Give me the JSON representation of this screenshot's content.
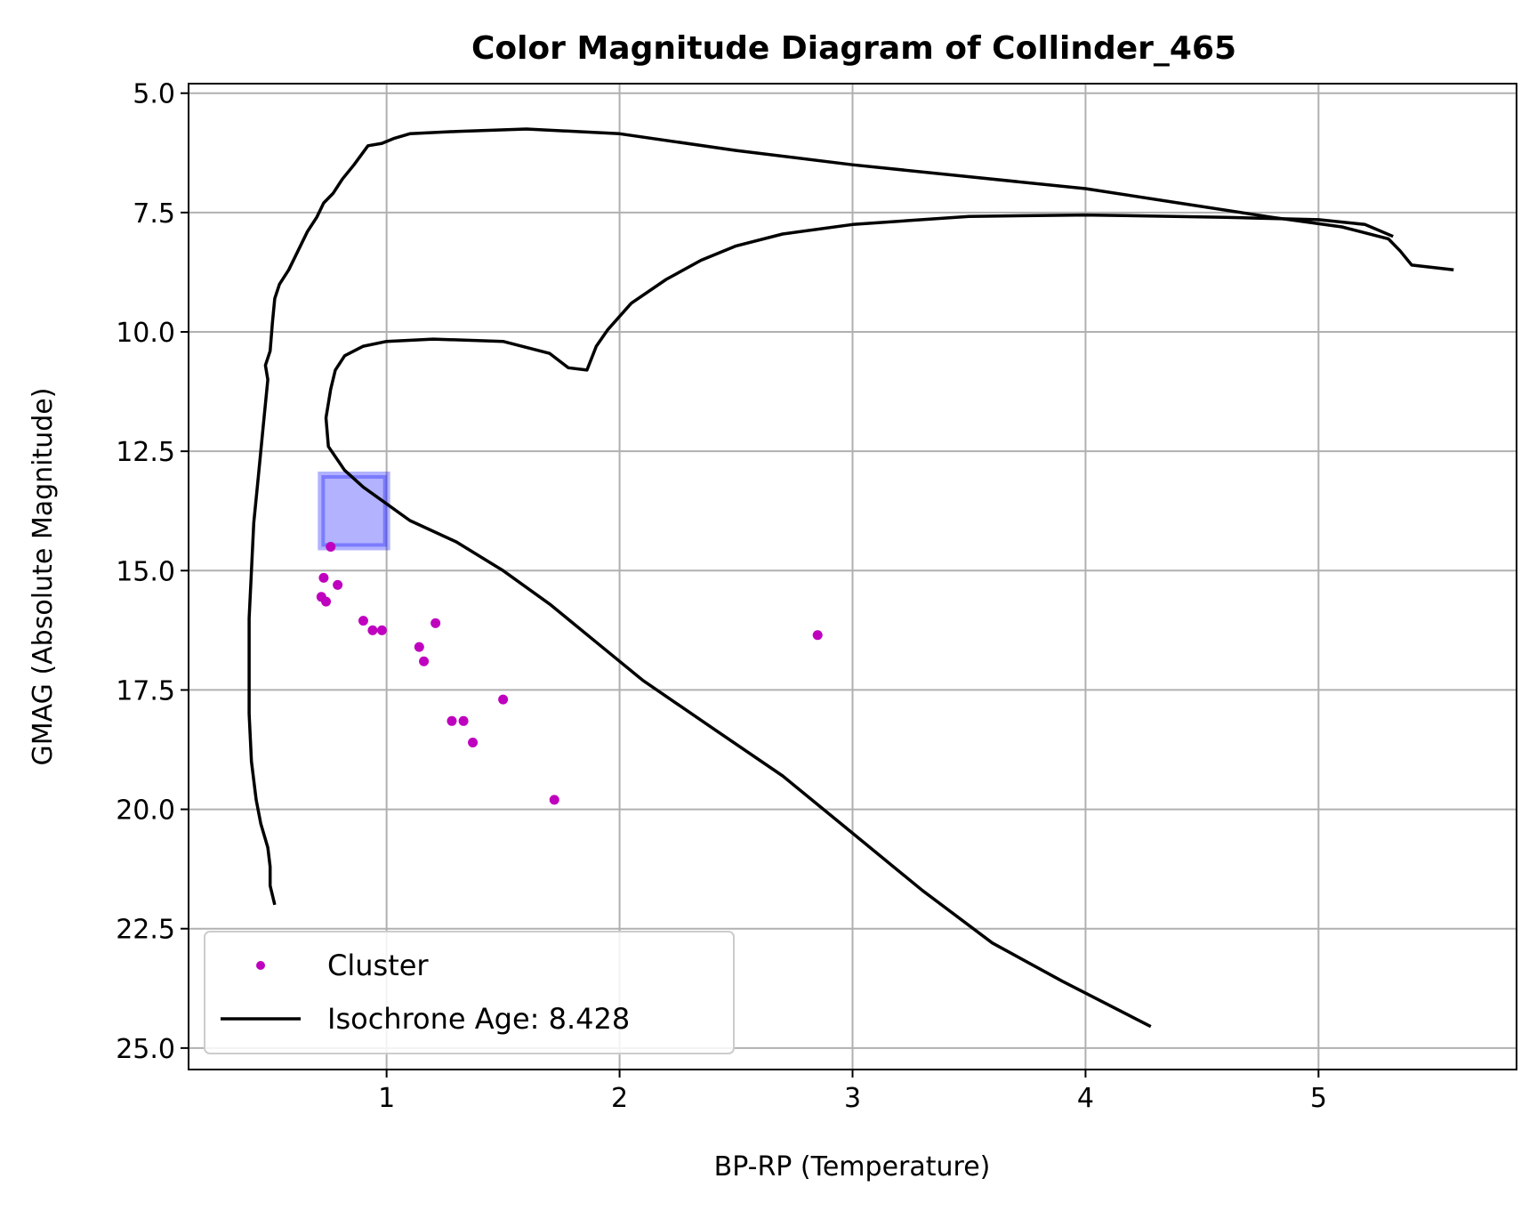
{
  "chart_data": {
    "type": "scatter",
    "title": "Color Magnitude Diagram of Collinder_465",
    "xlabel": "BP-RP (Temperature)",
    "ylabel": "GMAG (Absolute Magnitude)",
    "xlim": [
      0.15,
      5.85
    ],
    "ylim": [
      25.45,
      4.8
    ],
    "y_inverted": true,
    "grid": true,
    "legend_placement": "lower-left",
    "xticks": [
      1,
      2,
      3,
      4,
      5
    ],
    "xtick_labels": [
      "1",
      "2",
      "3",
      "4",
      "5"
    ],
    "yticks": [
      5.0,
      7.5,
      10.0,
      12.5,
      15.0,
      17.5,
      20.0,
      22.5,
      25.0
    ],
    "ytick_labels": [
      "5.0",
      "7.5",
      "10.0",
      "12.5",
      "15.0",
      "17.5",
      "20.0",
      "22.5",
      "25.0"
    ],
    "colors": {
      "cluster": "#bf00bf",
      "isochrone": "#000000",
      "highlight": "#0000ff"
    },
    "highlight_box": {
      "x": [
        0.72,
        1.0
      ],
      "y": [
        13.0,
        14.5
      ]
    },
    "series": [
      {
        "name": "Cluster",
        "kind": "scatter",
        "points": [
          [
            0.76,
            14.5
          ],
          [
            0.73,
            15.15
          ],
          [
            0.79,
            15.3
          ],
          [
            0.72,
            15.55
          ],
          [
            0.74,
            15.65
          ],
          [
            0.9,
            16.05
          ],
          [
            0.94,
            16.25
          ],
          [
            0.98,
            16.25
          ],
          [
            1.21,
            16.1
          ],
          [
            1.14,
            16.6
          ],
          [
            1.16,
            16.9
          ],
          [
            2.85,
            16.35
          ],
          [
            1.5,
            17.7
          ],
          [
            1.28,
            18.15
          ],
          [
            1.33,
            18.15
          ],
          [
            1.37,
            18.6
          ],
          [
            1.72,
            19.8
          ]
        ]
      },
      {
        "name": "Isochrone Age: 8.428",
        "kind": "line",
        "points": [
          [
            0.52,
            22.0
          ],
          [
            0.5,
            21.6
          ],
          [
            0.5,
            21.2
          ],
          [
            0.49,
            20.8
          ],
          [
            0.46,
            20.3
          ],
          [
            0.44,
            19.8
          ],
          [
            0.42,
            19.0
          ],
          [
            0.41,
            18.0
          ],
          [
            0.41,
            17.0
          ],
          [
            0.41,
            16.0
          ],
          [
            0.42,
            15.0
          ],
          [
            0.43,
            14.0
          ],
          [
            0.45,
            13.0
          ],
          [
            0.47,
            12.0
          ],
          [
            0.49,
            11.0
          ],
          [
            0.48,
            10.7
          ],
          [
            0.5,
            10.4
          ],
          [
            0.51,
            9.8
          ],
          [
            0.52,
            9.3
          ],
          [
            0.54,
            9.0
          ],
          [
            0.58,
            8.7
          ],
          [
            0.62,
            8.3
          ],
          [
            0.66,
            7.9
          ],
          [
            0.7,
            7.6
          ],
          [
            0.73,
            7.3
          ],
          [
            0.77,
            7.1
          ],
          [
            0.81,
            6.8
          ],
          [
            0.86,
            6.5
          ],
          [
            0.92,
            6.1
          ],
          [
            0.98,
            6.05
          ],
          [
            1.03,
            5.95
          ],
          [
            1.1,
            5.85
          ],
          [
            1.3,
            5.8
          ],
          [
            1.6,
            5.75
          ],
          [
            2.0,
            5.85
          ],
          [
            2.5,
            6.2
          ],
          [
            3.0,
            6.5
          ],
          [
            3.5,
            6.75
          ],
          [
            4.0,
            7.0
          ],
          [
            4.4,
            7.3
          ],
          [
            4.8,
            7.6
          ],
          [
            5.1,
            7.8
          ],
          [
            5.3,
            8.05
          ],
          [
            5.35,
            8.3
          ],
          [
            5.4,
            8.6
          ],
          [
            5.58,
            8.7
          ]
        ]
      },
      {
        "name": "Isochrone Age: 8.428",
        "kind": "line",
        "points": [
          [
            5.32,
            8.0
          ],
          [
            5.2,
            7.75
          ],
          [
            5.0,
            7.65
          ],
          [
            4.6,
            7.6
          ],
          [
            4.0,
            7.55
          ],
          [
            3.5,
            7.58
          ],
          [
            3.0,
            7.75
          ],
          [
            2.7,
            7.95
          ],
          [
            2.5,
            8.2
          ],
          [
            2.35,
            8.5
          ],
          [
            2.2,
            8.9
          ],
          [
            2.05,
            9.4
          ],
          [
            1.95,
            9.95
          ],
          [
            1.9,
            10.3
          ],
          [
            1.86,
            10.8
          ],
          [
            1.78,
            10.75
          ],
          [
            1.7,
            10.45
          ],
          [
            1.5,
            10.2
          ],
          [
            1.2,
            10.15
          ],
          [
            1.0,
            10.2
          ],
          [
            0.9,
            10.3
          ],
          [
            0.82,
            10.5
          ],
          [
            0.78,
            10.8
          ],
          [
            0.76,
            11.2
          ],
          [
            0.74,
            11.8
          ],
          [
            0.75,
            12.4
          ],
          [
            0.82,
            12.9
          ],
          [
            0.9,
            13.25
          ],
          [
            1.0,
            13.6
          ],
          [
            1.1,
            13.95
          ],
          [
            1.3,
            14.4
          ],
          [
            1.5,
            15.0
          ],
          [
            1.7,
            15.7
          ],
          [
            1.9,
            16.5
          ],
          [
            2.1,
            17.3
          ],
          [
            2.4,
            18.3
          ],
          [
            2.7,
            19.3
          ],
          [
            3.0,
            20.5
          ],
          [
            3.3,
            21.7
          ],
          [
            3.6,
            22.8
          ],
          [
            3.9,
            23.6
          ],
          [
            4.28,
            24.55
          ]
        ]
      }
    ]
  }
}
